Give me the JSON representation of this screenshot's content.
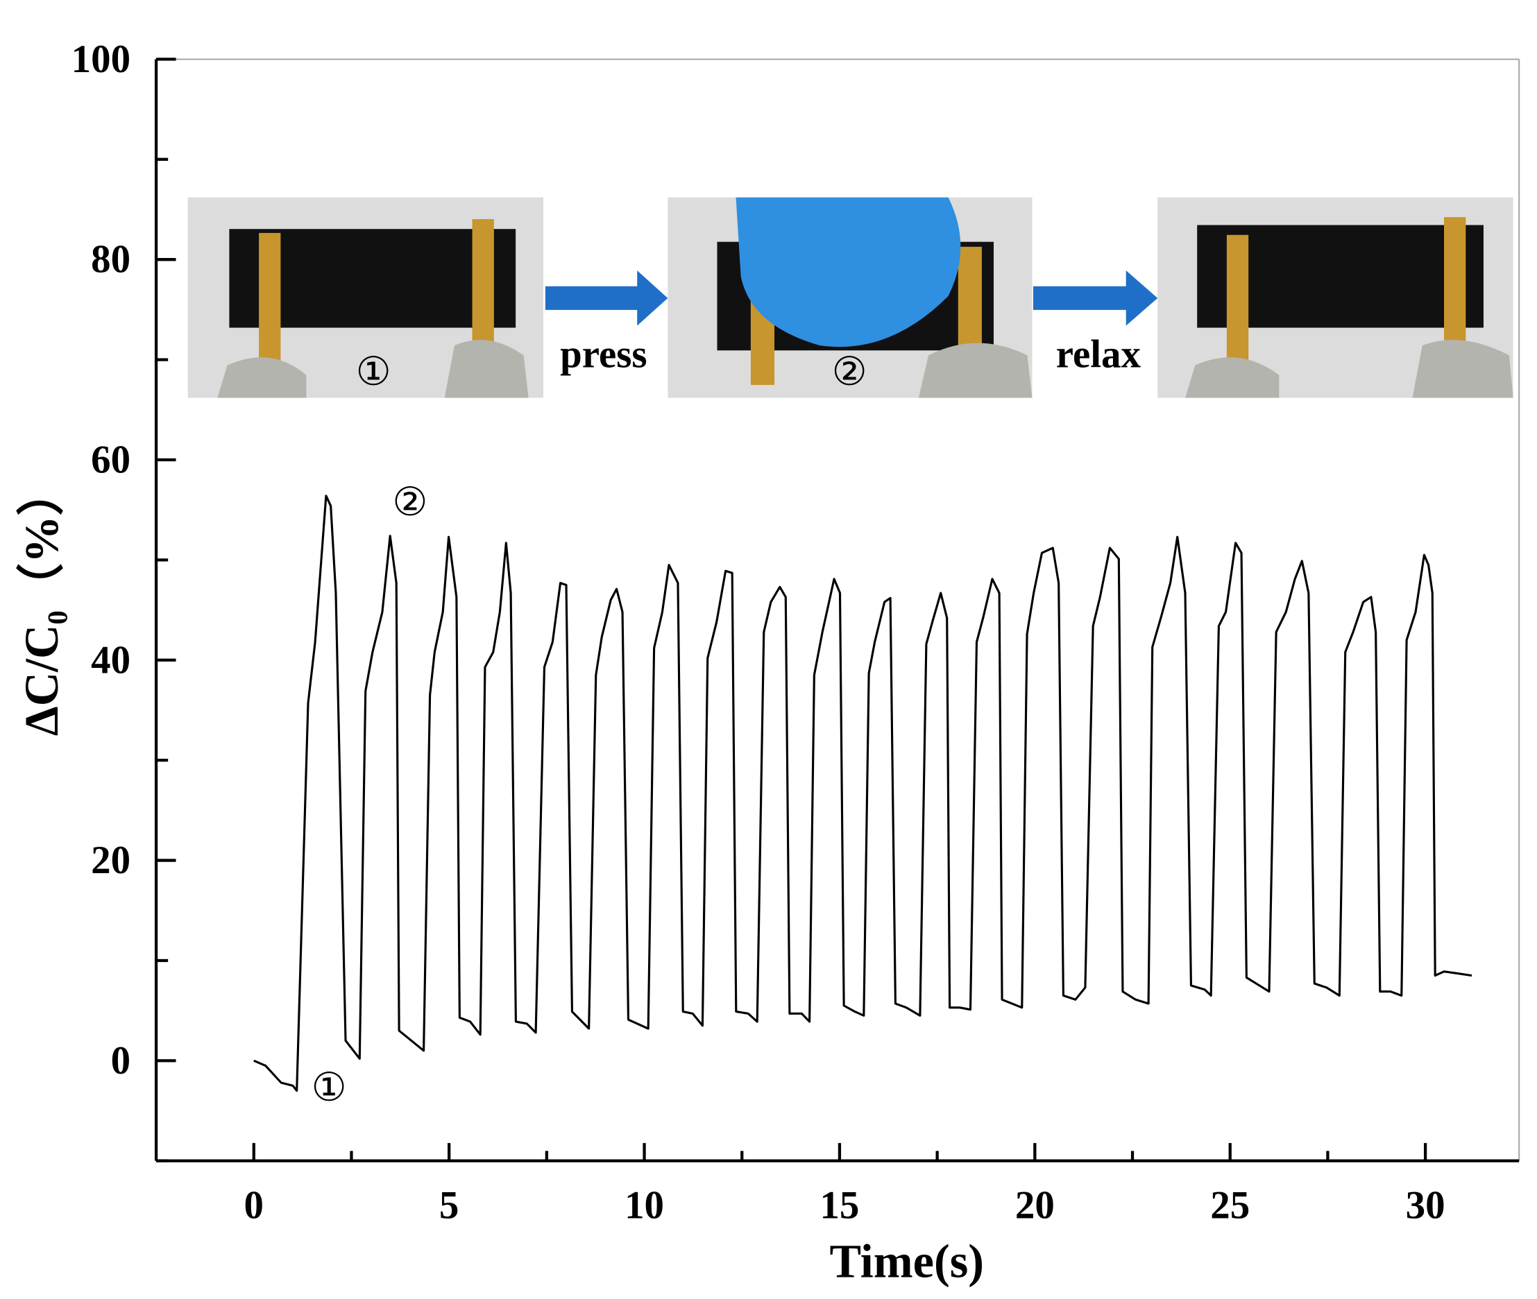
{
  "chart_data": {
    "type": "line",
    "xlabel": "Time(s)",
    "ylabel": "ΔC/C₀（%）",
    "xlim": [
      -2.5,
      32.4
    ],
    "ylim": [
      -10,
      100
    ],
    "xticks": [
      0,
      5,
      10,
      15,
      20,
      25,
      30
    ],
    "xticks_minor": [
      2.5,
      7.5,
      12.5,
      17.5,
      22.5,
      27.5
    ],
    "yticks": [
      0,
      20,
      40,
      60,
      80,
      100
    ],
    "yticks_minor": [
      -10,
      10,
      30,
      50,
      70,
      90
    ],
    "series": [
      {
        "color": "#000000",
        "x": [
          0,
          0.3,
          0.7,
          1.0,
          1.1,
          1.39,
          1.57,
          1.85,
          1.97,
          2.1,
          2.35,
          2.71,
          2.86,
          3.04,
          3.29,
          3.49,
          3.65,
          3.72,
          4.35,
          4.51,
          4.63,
          4.84,
          4.99,
          5.19,
          5.27,
          5.54,
          5.8,
          5.92,
          6.13,
          6.3,
          6.46,
          6.58,
          6.71,
          6.99,
          7.22,
          7.44,
          7.65,
          7.85,
          8.0,
          8.15,
          8.58,
          8.76,
          8.91,
          9.14,
          9.29,
          9.44,
          9.59,
          10.1,
          10.25,
          10.46,
          10.63,
          10.86,
          10.99,
          11.24,
          11.49,
          11.62,
          11.85,
          12.08,
          12.25,
          12.35,
          12.66,
          12.89,
          13.06,
          13.24,
          13.47,
          13.62,
          13.72,
          14.03,
          14.23,
          14.35,
          14.56,
          14.86,
          15.01,
          15.11,
          15.39,
          15.62,
          15.75,
          15.9,
          16.15,
          16.3,
          16.43,
          16.71,
          17.06,
          17.22,
          17.39,
          17.59,
          17.75,
          17.82,
          18.08,
          18.35,
          18.51,
          18.68,
          18.91,
          19.09,
          19.16,
          19.67,
          19.8,
          19.97,
          20.18,
          20.46,
          20.61,
          20.73,
          21.04,
          21.29,
          21.49,
          21.67,
          21.92,
          22.15,
          22.25,
          22.58,
          22.91,
          23.01,
          23.24,
          23.47,
          23.65,
          23.85,
          24.0,
          24.35,
          24.51,
          24.71,
          24.89,
          25.14,
          25.29,
          25.42,
          25.67,
          26.0,
          26.18,
          26.43,
          26.66,
          26.84,
          27.01,
          27.16,
          27.47,
          27.8,
          27.95,
          28.15,
          28.41,
          28.61,
          28.73,
          28.84,
          29.11,
          29.39,
          29.52,
          29.75,
          29.97,
          30.08,
          30.18,
          30.25,
          30.48,
          30.84,
          31.19
        ],
        "values": [
          0,
          -0.5,
          -2.2,
          -2.5,
          -3.0,
          35.7,
          41.8,
          56.4,
          55.4,
          46.7,
          2.0,
          0.2,
          36.9,
          40.8,
          44.8,
          52.4,
          47.7,
          3.0,
          1.0,
          36.5,
          40.8,
          44.8,
          52.3,
          46.3,
          4.3,
          3.9,
          2.6,
          39.3,
          40.8,
          44.8,
          51.7,
          46.7,
          3.9,
          3.7,
          2.8,
          39.3,
          41.8,
          47.7,
          47.5,
          4.9,
          3.2,
          38.5,
          42.3,
          46.0,
          47.1,
          44.8,
          4.1,
          3.2,
          41.2,
          44.8,
          49.5,
          47.7,
          4.9,
          4.7,
          3.5,
          40.2,
          43.8,
          48.9,
          48.7,
          4.9,
          4.7,
          3.9,
          42.8,
          45.8,
          47.3,
          46.3,
          4.7,
          4.7,
          3.9,
          38.5,
          42.8,
          48.1,
          46.7,
          5.5,
          4.9,
          4.5,
          38.7,
          41.8,
          45.8,
          46.2,
          5.7,
          5.3,
          4.5,
          41.6,
          44.0,
          46.7,
          44.2,
          5.3,
          5.3,
          5.1,
          41.8,
          44.3,
          48.1,
          46.7,
          6.1,
          5.3,
          42.6,
          46.7,
          50.7,
          51.2,
          47.7,
          6.5,
          6.1,
          7.3,
          43.4,
          46.3,
          51.2,
          50.1,
          6.9,
          6.1,
          5.7,
          41.3,
          44.4,
          47.7,
          52.3,
          46.7,
          7.5,
          7.1,
          6.5,
          43.4,
          44.8,
          51.7,
          50.7,
          8.3,
          7.7,
          6.9,
          42.8,
          44.8,
          48.1,
          49.9,
          46.7,
          7.7,
          7.3,
          6.5,
          40.8,
          42.8,
          45.8,
          46.3,
          42.8,
          6.9,
          6.9,
          6.5,
          42.0,
          44.8,
          50.5,
          49.5,
          46.7,
          8.5,
          8.9,
          8.7,
          8.5
        ]
      }
    ],
    "annotations": [
      "②",
      "①"
    ],
    "inset": {
      "labels": [
        "①",
        "press",
        "②",
        "relax"
      ]
    }
  }
}
